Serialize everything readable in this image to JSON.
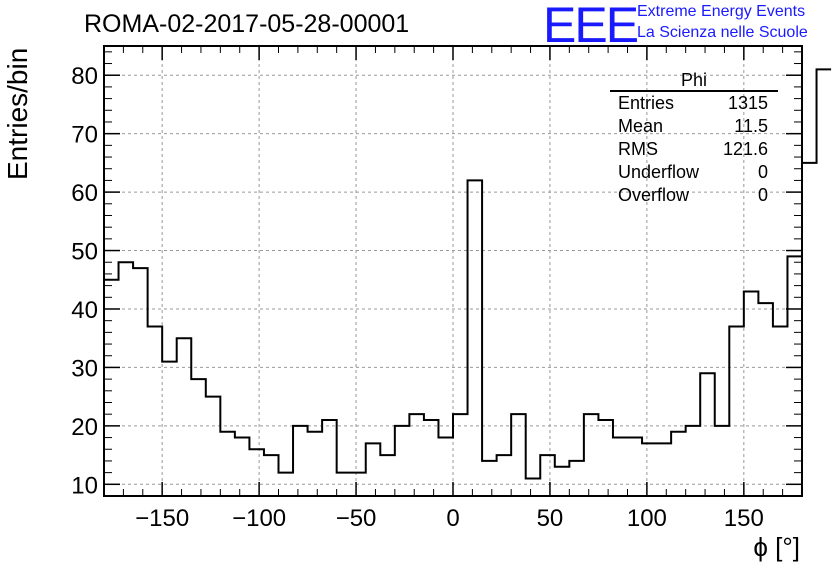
{
  "chart_data": {
    "type": "histogram",
    "title": "ROMA-02-2017-05-28-00001",
    "xlabel": "ϕ [°]",
    "ylabel": "Entries/bin",
    "xlim": [
      -180,
      180
    ],
    "ylim": [
      8,
      85
    ],
    "grid": true,
    "bin_width": 7.5,
    "xticks": [
      -150,
      -100,
      -50,
      0,
      50,
      100,
      150
    ],
    "xtick_labels": [
      "−150",
      "−100",
      "−50",
      "0",
      "50",
      "100",
      "150"
    ],
    "yticks": [
      10,
      20,
      30,
      40,
      50,
      60,
      70,
      80
    ],
    "values": [
      45,
      48,
      47,
      37,
      31,
      35,
      28,
      25,
      19,
      18,
      16,
      15,
      12,
      20,
      19,
      21,
      12,
      12,
      17,
      15,
      20,
      22,
      21,
      18,
      22,
      62,
      14,
      15,
      22,
      11,
      15,
      13,
      14,
      22,
      21,
      18,
      18,
      17,
      17,
      19,
      20,
      29,
      20,
      37,
      43,
      41,
      37,
      49,
      65,
      81
    ],
    "stats_box": {
      "title": "Phi",
      "rows": [
        {
          "label": "Entries",
          "value": "1315"
        },
        {
          "label": "Mean",
          "value": "11.5"
        },
        {
          "label": "RMS",
          "value": "121.6"
        },
        {
          "label": "Underflow",
          "value": "0"
        },
        {
          "label": "Overflow",
          "value": "0"
        }
      ]
    }
  },
  "logo": {
    "text": "EEE",
    "line1": "Extreme Energy Events",
    "line2": "La Scienza nelle Scuole",
    "color": "#1a1aff"
  }
}
